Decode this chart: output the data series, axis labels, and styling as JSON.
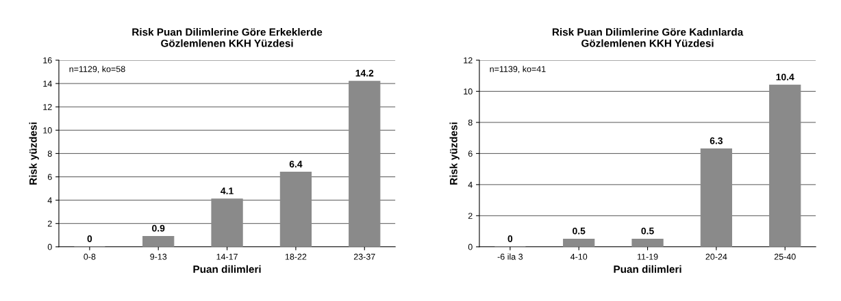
{
  "chart_data": [
    {
      "type": "bar",
      "title": "Risk Puan Dilimlerine Göre Erkeklerde\nGözlemlenen KKH Yüzdesi",
      "xlabel": "Puan dilimleri",
      "ylabel": "Risk yüzdesi",
      "categories": [
        "0-8",
        "9-13",
        "14-17",
        "18-22",
        "23-37"
      ],
      "values": [
        0,
        0.9,
        4.1,
        6.4,
        14.2
      ],
      "color": "#8a8a8a",
      "ylim": [
        0,
        16
      ],
      "yticks": [
        0,
        2,
        4,
        6,
        8,
        10,
        12,
        14,
        16
      ],
      "grid": "y",
      "data_labels": true,
      "annotations": [
        "n=1129, ko=58"
      ]
    },
    {
      "type": "bar",
      "title": "Risk Puan Dilimlerine Göre Kadınlarda\nGözlemlenen KKH Yüzdesi",
      "xlabel": "Puan dilimleri",
      "ylabel": "Risk yüzdesi",
      "categories": [
        "-6 ila 3",
        "4-10",
        "11-19",
        "20-24",
        "25-40"
      ],
      "values": [
        0,
        0.5,
        0.5,
        6.3,
        10.4
      ],
      "color": "#8a8a8a",
      "ylim": [
        0,
        12
      ],
      "yticks": [
        0,
        2,
        4,
        6,
        8,
        10,
        12
      ],
      "grid": "y",
      "data_labels": true,
      "annotations": [
        "n=1139, ko=41"
      ]
    }
  ]
}
